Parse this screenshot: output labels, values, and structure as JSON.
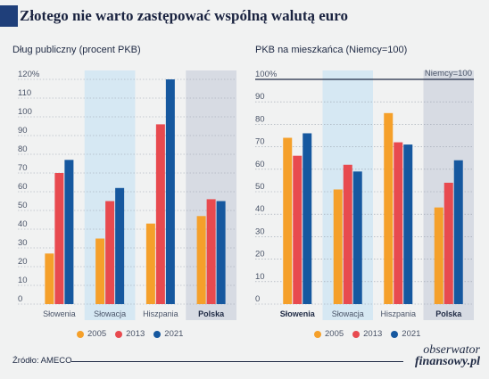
{
  "title": "Złotego nie warto zastępować wspólną walutą euro",
  "source": "Źródło: AMECO",
  "brand": {
    "line1": "obserwator",
    "line2": "finansowy.pl"
  },
  "legend": [
    {
      "label": "2005",
      "color": "#f5a02a"
    },
    {
      "label": "2013",
      "color": "#e84a4f"
    },
    {
      "label": "2021",
      "color": "#16589f"
    }
  ],
  "chart_data": [
    {
      "type": "bar",
      "title": "Dług publiczny (procent PKB)",
      "categories": [
        "Słowenia",
        "Słowacja",
        "Hiszpania",
        "Polska"
      ],
      "series": [
        {
          "name": "2005",
          "values": [
            27,
            35,
            43,
            47
          ]
        },
        {
          "name": "2013",
          "values": [
            70,
            55,
            96,
            56
          ]
        },
        {
          "name": "2021",
          "values": [
            77,
            62,
            120,
            55
          ]
        }
      ],
      "ylim": [
        0,
        120
      ],
      "yticks": [
        "0",
        "10",
        "20",
        "30",
        "40",
        "50",
        "60",
        "70",
        "80",
        "90",
        "100",
        "110",
        "120%"
      ],
      "highlight_categories": [
        "Słowacja",
        "Polska"
      ],
      "bold_categories": [
        "Polska"
      ]
    },
    {
      "type": "bar",
      "title": "PKB na mieszkańca (Niemcy=100)",
      "categories": [
        "Słowenia",
        "Słowacja",
        "Hiszpania",
        "Polska"
      ],
      "series": [
        {
          "name": "2005",
          "values": [
            74,
            51,
            85,
            43
          ]
        },
        {
          "name": "2013",
          "values": [
            66,
            62,
            72,
            54
          ]
        },
        {
          "name": "2021",
          "values": [
            76,
            59,
            71,
            64
          ]
        }
      ],
      "ylim": [
        0,
        100
      ],
      "yticks": [
        "0",
        "10",
        "20",
        "30",
        "40",
        "50",
        "60",
        "70",
        "80",
        "90",
        "100%"
      ],
      "reference_line": {
        "value": 100,
        "label": "Niemcy=100"
      },
      "highlight_categories": [
        "Słowacja",
        "Polska"
      ],
      "bold_categories": [
        "Słowenia",
        "Polska"
      ]
    }
  ]
}
